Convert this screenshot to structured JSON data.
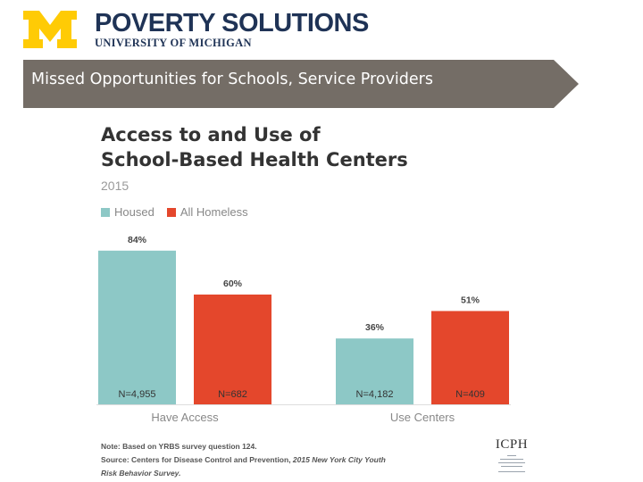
{
  "header": {
    "logo_title": "POVERTY SOLUTIONS",
    "logo_subtitle": "UNIVERSITY OF MICHIGAN",
    "brand_color": "#ffcb05",
    "navy": "#1f3356"
  },
  "banner": {
    "text": "Missed Opportunities for Schools, Service Providers",
    "color": "#746d66"
  },
  "chart_data": {
    "type": "bar",
    "title_lines": [
      "Access to and Use of",
      "School-Based Health Centers"
    ],
    "subtitle": "2015",
    "categories": [
      "Have Access",
      "Use Centers"
    ],
    "series": [
      {
        "name": "Housed",
        "color": "#8dc8c6",
        "values": [
          84,
          36
        ],
        "labels": [
          "84%",
          "36%"
        ],
        "n": [
          "N=4,955",
          "N=4,182"
        ]
      },
      {
        "name": "All Homeless",
        "color": "#e4472c",
        "values": [
          60,
          51
        ],
        "labels": [
          "60%",
          "51%"
        ],
        "n": [
          "N=682",
          "N=409"
        ]
      }
    ],
    "ylim": [
      0,
      100
    ],
    "grid": false,
    "legend_position": "top-left"
  },
  "notes": {
    "line1": "Note: Based on YRBS survey question 124.",
    "line2_prefix": "Source: Centers for Disease Control and Prevention, ",
    "line2_italic": "2015 New York City Youth",
    "line3_italic": "Risk Behavior Survey."
  },
  "icph": {
    "title": "ICPH"
  }
}
